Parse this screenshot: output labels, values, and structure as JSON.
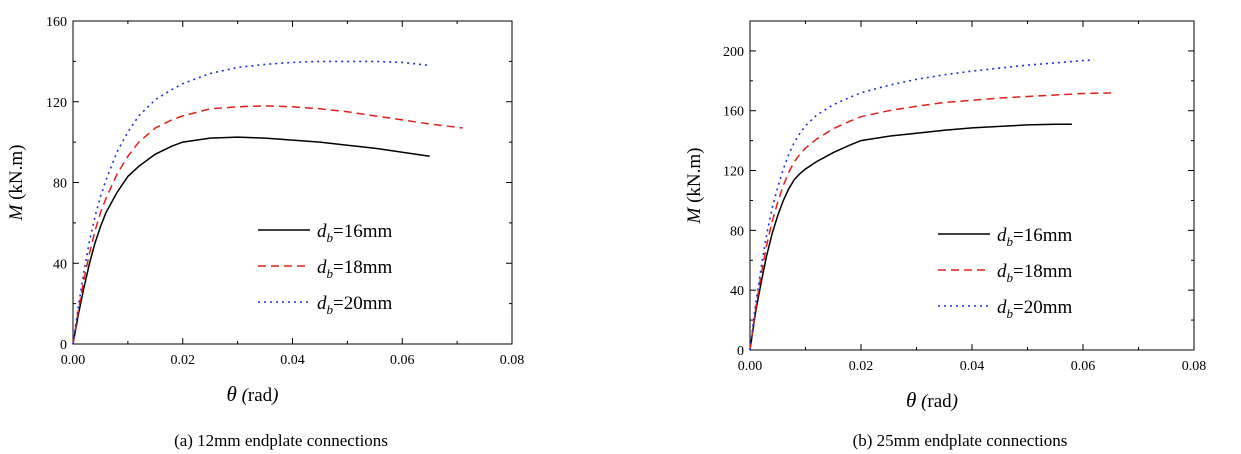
{
  "chart_data": [
    {
      "type": "line",
      "caption": "(a) 12mm endplate connections",
      "xlabel": {
        "symbol": "θ",
        "unit": "rad"
      },
      "ylabel": {
        "symbol": "M",
        "unit": "(kN.m)"
      },
      "xlim": [
        0,
        0.08
      ],
      "ylim": [
        0,
        160
      ],
      "x_ticks": [
        "0.00",
        "0.02",
        "0.04",
        "0.06",
        "0.08"
      ],
      "y_ticks": [
        "0",
        "40",
        "80",
        "120",
        "160"
      ],
      "x_tick_values": [
        0,
        0.02,
        0.04,
        0.06,
        0.08
      ],
      "y_tick_values": [
        0,
        40,
        80,
        120,
        160
      ],
      "legend_position": "lower-right",
      "series": [
        {
          "name": {
            "base": "d",
            "sub": "b",
            "rest": "=16mm"
          },
          "color": "#000000",
          "style": "solid",
          "x": [
            0,
            0.001,
            0.002,
            0.003,
            0.004,
            0.005,
            0.006,
            0.008,
            0.01,
            0.012,
            0.015,
            0.018,
            0.02,
            0.025,
            0.03,
            0.035,
            0.04,
            0.045,
            0.05,
            0.055,
            0.06,
            0.065
          ],
          "y": [
            0,
            15,
            28,
            40,
            50,
            58,
            65,
            75,
            83,
            88,
            94,
            98,
            100,
            102,
            102.5,
            102,
            101,
            100,
            98.5,
            97,
            95,
            93
          ]
        },
        {
          "name": {
            "base": "d",
            "sub": "b",
            "rest": "=18mm"
          },
          "color": "#e0201a",
          "style": "dashed",
          "x": [
            0,
            0.001,
            0.002,
            0.003,
            0.004,
            0.005,
            0.006,
            0.008,
            0.01,
            0.012,
            0.015,
            0.018,
            0.02,
            0.025,
            0.03,
            0.035,
            0.04,
            0.045,
            0.05,
            0.055,
            0.06,
            0.065,
            0.071
          ],
          "y": [
            0,
            17,
            32,
            45,
            56,
            65,
            72,
            84,
            93,
            100,
            107,
            111,
            113,
            116.5,
            117.5,
            118,
            117.5,
            116.5,
            115,
            113,
            111,
            109,
            107
          ]
        },
        {
          "name": {
            "base": "d",
            "sub": "b",
            "rest": "=20mm"
          },
          "color": "#1f2fd6",
          "style": "dotted",
          "x": [
            0,
            0.001,
            0.002,
            0.003,
            0.004,
            0.005,
            0.006,
            0.008,
            0.01,
            0.012,
            0.015,
            0.018,
            0.02,
            0.025,
            0.03,
            0.035,
            0.04,
            0.045,
            0.05,
            0.055,
            0.06,
            0.065
          ],
          "y": [
            0,
            19,
            36,
            51,
            63,
            73,
            81,
            95,
            105,
            113,
            121,
            126,
            129,
            134,
            137,
            138.5,
            139.5,
            140,
            140,
            140,
            139.5,
            138
          ]
        }
      ]
    },
    {
      "type": "line",
      "caption": "(b) 25mm endplate connections",
      "xlabel": {
        "symbol": "θ",
        "unit": "rad"
      },
      "ylabel": {
        "symbol": "M",
        "unit": "(kN.m)"
      },
      "xlim": [
        0,
        0.08
      ],
      "ylim": [
        0,
        220
      ],
      "x_ticks": [
        "0.00",
        "0.02",
        "0.04",
        "0.06",
        "0.08"
      ],
      "y_ticks": [
        "0",
        "40",
        "80",
        "120",
        "160",
        "200"
      ],
      "x_tick_values": [
        0,
        0.02,
        0.04,
        0.06,
        0.08
      ],
      "y_tick_values": [
        0,
        40,
        80,
        120,
        160,
        200
      ],
      "legend_position": "lower-right",
      "series": [
        {
          "name": {
            "base": "d",
            "sub": "b",
            "rest": "=16mm"
          },
          "color": "#000000",
          "style": "solid",
          "x": [
            0,
            0.001,
            0.002,
            0.003,
            0.004,
            0.005,
            0.006,
            0.007,
            0.008,
            0.009,
            0.01,
            0.012,
            0.015,
            0.018,
            0.02,
            0.025,
            0.03,
            0.035,
            0.04,
            0.045,
            0.05,
            0.055,
            0.058
          ],
          "y": [
            0,
            25,
            45,
            63,
            78,
            90,
            100,
            108,
            114,
            118,
            121,
            126,
            132,
            137,
            140,
            143,
            145,
            147,
            148.5,
            149.5,
            150.5,
            151,
            151
          ]
        },
        {
          "name": {
            "base": "d",
            "sub": "b",
            "rest": "=18mm"
          },
          "color": "#e0201a",
          "style": "dashed",
          "x": [
            0,
            0.001,
            0.002,
            0.003,
            0.004,
            0.005,
            0.006,
            0.007,
            0.008,
            0.009,
            0.01,
            0.012,
            0.015,
            0.018,
            0.02,
            0.025,
            0.03,
            0.035,
            0.04,
            0.045,
            0.05,
            0.055,
            0.06,
            0.066
          ],
          "y": [
            0,
            27,
            50,
            70,
            86,
            99,
            110,
            119,
            126,
            131,
            135,
            141,
            148,
            153,
            156,
            160,
            163,
            165.5,
            167,
            168.5,
            169.5,
            170.5,
            171.5,
            172
          ]
        },
        {
          "name": {
            "base": "d",
            "sub": "b",
            "rest": "=20mm"
          },
          "color": "#1f2fd6",
          "style": "dotted",
          "x": [
            0,
            0.001,
            0.002,
            0.003,
            0.004,
            0.005,
            0.006,
            0.007,
            0.008,
            0.009,
            0.01,
            0.012,
            0.015,
            0.018,
            0.02,
            0.025,
            0.03,
            0.035,
            0.04,
            0.045,
            0.05,
            0.055,
            0.06,
            0.062
          ],
          "y": [
            0,
            30,
            55,
            77,
            95,
            109,
            121,
            131,
            139,
            145,
            150,
            157,
            164,
            169,
            172,
            177,
            181,
            184,
            186.5,
            188.5,
            190.5,
            192,
            193.5,
            194
          ]
        }
      ]
    }
  ]
}
